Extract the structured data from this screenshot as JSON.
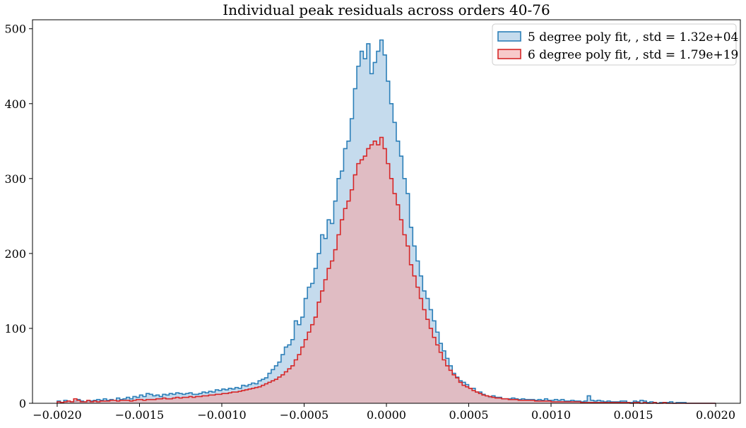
{
  "chart_data": {
    "type": "histogram",
    "title": "Individual peak residuals across orders 40-76",
    "xlabel": "",
    "ylabel": "",
    "xlim": [
      -0.00215,
      0.00215
    ],
    "ylim": [
      0,
      512
    ],
    "x_ticks": [
      -0.002,
      -0.0015,
      -0.001,
      -0.0005,
      0.0,
      0.0005,
      0.001,
      0.0015,
      0.002
    ],
    "x_tick_labels": [
      "−0.0020",
      "−0.0015",
      "−0.0010",
      "−0.0005",
      "0.0000",
      "0.0005",
      "0.0010",
      "0.0015",
      "0.0020"
    ],
    "y_ticks": [
      0,
      100,
      200,
      300,
      400,
      500
    ],
    "y_tick_labels": [
      "0",
      "100",
      "200",
      "300",
      "400",
      "500"
    ],
    "grid": false,
    "legend_position": "top-right",
    "bins": {
      "start": -0.002,
      "end": 0.002,
      "count": 200
    },
    "series": [
      {
        "name": "5 degree poly fit, , std = 1.32e+04",
        "edge_color": "#2c7fb8",
        "fill_color": "#a6c8e4",
        "fill_opacity": 0.65,
        "values": [
          3,
          1,
          4,
          3,
          2,
          3,
          5,
          3,
          2,
          3,
          3,
          4,
          5,
          4,
          6,
          4,
          5,
          4,
          7,
          5,
          6,
          8,
          6,
          9,
          8,
          11,
          9,
          13,
          12,
          10,
          11,
          9,
          12,
          11,
          13,
          12,
          14,
          13,
          12,
          13,
          14,
          12,
          12,
          13,
          15,
          14,
          16,
          15,
          18,
          17,
          19,
          18,
          20,
          19,
          21,
          20,
          24,
          23,
          25,
          27,
          26,
          30,
          32,
          34,
          40,
          45,
          50,
          55,
          65,
          75,
          78,
          85,
          110,
          105,
          115,
          140,
          155,
          160,
          180,
          200,
          225,
          220,
          245,
          240,
          270,
          300,
          310,
          340,
          350,
          380,
          420,
          450,
          470,
          460,
          480,
          440,
          455,
          470,
          485,
          465,
          430,
          400,
          375,
          350,
          330,
          300,
          280,
          235,
          210,
          190,
          170,
          150,
          140,
          125,
          110,
          95,
          80,
          70,
          60,
          50,
          40,
          35,
          30,
          28,
          25,
          20,
          20,
          15,
          15,
          12,
          10,
          8,
          10,
          8,
          8,
          6,
          6,
          6,
          7,
          6,
          5,
          6,
          5,
          5,
          5,
          4,
          5,
          4,
          6,
          4,
          4,
          5,
          4,
          5,
          3,
          3,
          4,
          3,
          3,
          2,
          3,
          10,
          4,
          3,
          4,
          3,
          2,
          3,
          2,
          2,
          2,
          3,
          3,
          1,
          1,
          3,
          2,
          4,
          3,
          1,
          2,
          1,
          0,
          1,
          1,
          1,
          2,
          0,
          1,
          1,
          1,
          0,
          0,
          0,
          0,
          0,
          0,
          0,
          0,
          0
        ]
      },
      {
        "name": "6 degree poly fit, , std = 1.79e+19",
        "edge_color": "#d62728",
        "fill_color": "#f2a6a6",
        "fill_opacity": 0.6,
        "values": [
          2,
          1,
          2,
          3,
          2,
          6,
          4,
          2,
          2,
          4,
          2,
          3,
          2,
          3,
          3,
          3,
          4,
          4,
          3,
          4,
          4,
          4,
          3,
          4,
          5,
          5,
          4,
          5,
          5,
          5,
          6,
          6,
          7,
          6,
          6,
          7,
          8,
          7,
          8,
          8,
          9,
          8,
          9,
          9,
          10,
          10,
          11,
          11,
          12,
          12,
          13,
          13,
          14,
          15,
          15,
          16,
          17,
          18,
          19,
          20,
          21,
          22,
          24,
          26,
          28,
          30,
          32,
          35,
          38,
          42,
          46,
          50,
          58,
          65,
          75,
          85,
          95,
          105,
          115,
          135,
          150,
          165,
          180,
          190,
          205,
          225,
          245,
          260,
          270,
          285,
          305,
          320,
          325,
          330,
          340,
          345,
          350,
          345,
          355,
          340,
          320,
          300,
          280,
          265,
          245,
          225,
          210,
          185,
          170,
          155,
          140,
          125,
          112,
          100,
          88,
          78,
          68,
          58,
          50,
          44,
          38,
          34,
          28,
          24,
          22,
          20,
          17,
          15,
          13,
          11,
          10,
          9,
          8,
          7,
          7,
          6,
          6,
          5,
          5,
          5,
          4,
          4,
          4,
          4,
          4,
          3,
          3,
          3,
          3,
          3,
          2,
          2,
          2,
          2,
          2,
          2,
          2,
          2,
          2,
          1,
          1,
          1,
          1,
          1,
          1,
          1,
          1,
          1,
          1,
          1,
          1,
          1,
          1,
          1,
          0,
          1,
          1,
          0,
          1,
          0,
          0,
          1,
          0,
          0,
          1,
          0,
          0,
          0,
          0,
          0,
          0,
          0,
          0,
          0,
          0,
          0,
          0,
          0,
          0,
          0
        ]
      }
    ]
  }
}
